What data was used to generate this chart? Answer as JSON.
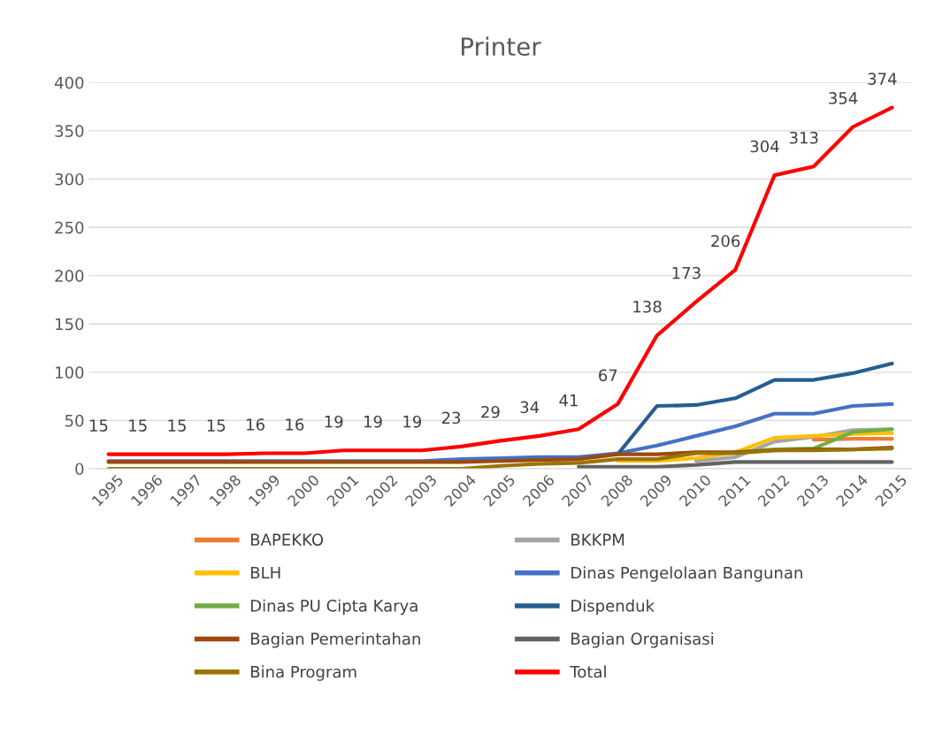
{
  "chart_data": {
    "type": "line",
    "title": "Printer",
    "categories": [
      "1995",
      "1996",
      "1997",
      "1998",
      "1999",
      "2000",
      "2001",
      "2002",
      "2003",
      "2004",
      "2005",
      "2006",
      "2007",
      "2008",
      "2009",
      "2010",
      "2011",
      "2012",
      "2013",
      "2014",
      "2015"
    ],
    "ylim": [
      0,
      400
    ],
    "yticks": [
      0,
      50,
      100,
      150,
      200,
      250,
      300,
      350,
      400
    ],
    "grid": "y",
    "legend": "bottom",
    "marker": "none",
    "line_style": "solid",
    "series": [
      {
        "name": "BAPEKKO",
        "color": "#ed7d31",
        "values": [
          null,
          null,
          null,
          null,
          null,
          null,
          null,
          null,
          null,
          null,
          null,
          null,
          null,
          null,
          null,
          null,
          null,
          null,
          30,
          31,
          31
        ]
      },
      {
        "name": "BKKPM",
        "color": "#a5a5a5",
        "values": [
          null,
          null,
          null,
          null,
          null,
          null,
          null,
          null,
          null,
          null,
          null,
          null,
          null,
          null,
          null,
          8,
          12,
          28,
          33,
          40,
          41
        ]
      },
      {
        "name": "BLH",
        "color": "#ffc000",
        "values": [
          null,
          null,
          null,
          null,
          null,
          null,
          null,
          null,
          null,
          null,
          null,
          null,
          null,
          8,
          8,
          11,
          17,
          32,
          34,
          36,
          37
        ]
      },
      {
        "name": "Dinas Pengelolaan Bangunan",
        "color": "#4472c4",
        "values": [
          8,
          8,
          8,
          8,
          8,
          8,
          8,
          8,
          8,
          10,
          11,
          12,
          12,
          16,
          24,
          34,
          44,
          57,
          57,
          65,
          67
        ]
      },
      {
        "name": "Dinas PU Cipta Karya",
        "color": "#70ad47",
        "values": [
          null,
          null,
          null,
          null,
          null,
          null,
          null,
          null,
          null,
          null,
          null,
          null,
          null,
          null,
          null,
          null,
          17,
          20,
          21,
          38,
          41
        ]
      },
      {
        "name": "Dispenduk",
        "color": "#255e91",
        "values": [
          null,
          null,
          null,
          null,
          null,
          null,
          null,
          null,
          null,
          null,
          null,
          null,
          null,
          15,
          65,
          66,
          73,
          92,
          92,
          99,
          109
        ]
      },
      {
        "name": "Bagian Pemerintahan",
        "color": "#9e480e",
        "values": [
          7,
          7,
          7,
          7,
          7,
          7,
          7,
          7,
          7,
          7,
          8,
          9,
          10,
          15,
          15,
          17,
          17,
          19,
          20,
          20,
          22
        ]
      },
      {
        "name": "Bagian Organisasi",
        "color": "#636363",
        "values": [
          null,
          null,
          null,
          null,
          null,
          null,
          null,
          null,
          null,
          null,
          null,
          null,
          2,
          2,
          2,
          4,
          7,
          7,
          7,
          7,
          7
        ]
      },
      {
        "name": "Bina Program",
        "color": "#997300",
        "values": [
          0,
          0,
          0,
          0,
          0,
          0,
          0,
          0,
          0,
          0,
          3,
          5,
          6,
          10,
          10,
          16,
          16,
          19,
          19,
          20,
          21
        ]
      },
      {
        "name": "Total",
        "color": "#ff0000",
        "values": [
          15,
          15,
          15,
          15,
          16,
          16,
          19,
          19,
          19,
          23,
          29,
          34,
          41,
          67,
          138,
          173,
          206,
          304,
          313,
          354,
          374
        ],
        "value_labels": [
          "15",
          "15",
          "15",
          "15",
          "16",
          "16",
          "19",
          "19",
          "19",
          "23",
          "29",
          "34",
          "41",
          "67",
          "138",
          "173",
          "206",
          "304",
          "313",
          "354",
          "374"
        ]
      }
    ]
  }
}
